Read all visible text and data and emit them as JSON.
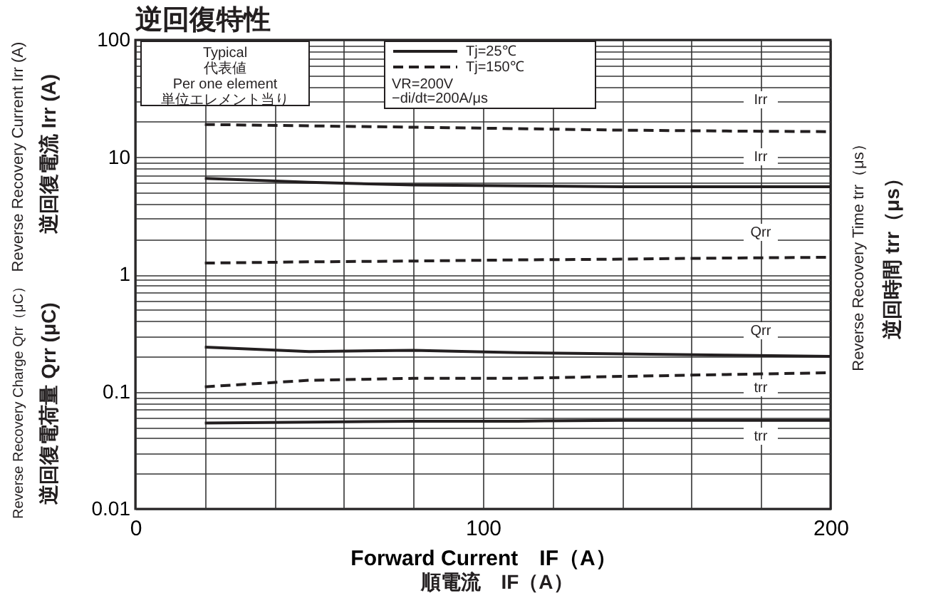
{
  "chart_data": {
    "type": "line",
    "title": "逆回復特性",
    "xlabel": "Forward Current　IF（A）",
    "ylabel": "Reverse Recovery Current Irr (A)",
    "y2label": "Reverse Recovery Time trr（μs）",
    "x": [
      20,
      50,
      80,
      110,
      140,
      170,
      200
    ],
    "series": [
      {
        "name": "Tj=25℃",
        "color": "#231f20",
        "line_style": "solid",
        "values": [
          6.6,
          6.1,
          5.8,
          5.7,
          5.6,
          5.6,
          5.6
        ]
      },
      {
        "name": "Tj=150℃",
        "color": "#231f20",
        "line_style": "dashed",
        "values": [
          19,
          18.5,
          18,
          17.5,
          17,
          16.7,
          16.5
        ]
      },
      {
        "color": "#231f20",
        "line_style": "dashed",
        "values": [
          1.25,
          1.28,
          1.3,
          1.33,
          1.35,
          1.38,
          1.4
        ]
      },
      {
        "color": "#231f20",
        "line_style": "solid",
        "values": [
          0.24,
          0.22,
          0.225,
          0.215,
          0.21,
          0.205,
          0.2
        ]
      },
      {
        "color": "#231f20",
        "line_style": "dashed",
        "values": [
          0.11,
          0.125,
          0.13,
          0.13,
          0.135,
          0.14,
          0.145
        ]
      },
      {
        "color": "#231f20",
        "line_style": "solid",
        "values": [
          0.054,
          0.055,
          0.056,
          0.056,
          0.057,
          0.057,
          0.057
        ]
      }
    ],
    "xlim": [
      0,
      200
    ],
    "xticks": [
      0,
      {
        "value": 20,
        "label": null
      },
      {
        "value": 40,
        "label": null
      },
      {
        "value": 60,
        "label": null
      },
      {
        "value": 80,
        "label": null
      },
      100,
      {
        "value": 120,
        "label": null
      },
      {
        "value": 140,
        "label": null
      },
      {
        "value": 160,
        "label": null
      },
      {
        "value": 180,
        "label": null
      },
      200
    ],
    "ylim": [
      0.01,
      100
    ],
    "log": true,
    "yticks": [
      0.01,
      {
        "value": 0.02,
        "label": null
      },
      {
        "value": 0.03,
        "label": null
      },
      {
        "value": 0.04,
        "label": null
      },
      {
        "value": 0.05,
        "label": null
      },
      {
        "value": 0.06,
        "label": null
      },
      {
        "value": 0.07,
        "label": null
      },
      {
        "value": 0.08,
        "label": null
      },
      {
        "value": 0.09,
        "label": null
      },
      0.1,
      {
        "value": 0.2,
        "label": null
      },
      {
        "value": 0.3,
        "label": null
      },
      {
        "value": 0.4,
        "label": null
      },
      {
        "value": 0.5,
        "label": null
      },
      {
        "value": 0.6,
        "label": null
      },
      {
        "value": 0.7,
        "label": null
      },
      {
        "value": 0.8,
        "label": null
      },
      {
        "value": 0.9,
        "label": null
      },
      1,
      {
        "value": 2,
        "label": null
      },
      {
        "value": 3,
        "label": null
      },
      {
        "value": 4,
        "label": null
      },
      {
        "value": 5,
        "label": null
      },
      {
        "value": 6,
        "label": null
      },
      {
        "value": 7,
        "label": null
      },
      {
        "value": 8,
        "label": null
      },
      {
        "value": 9,
        "label": null
      },
      10,
      {
        "value": 20,
        "label": null
      },
      {
        "value": 30,
        "label": null
      },
      {
        "value": 40,
        "label": null
      },
      {
        "value": 50,
        "label": null
      },
      {
        "value": 60,
        "label": null
      },
      {
        "value": 70,
        "label": null
      },
      {
        "value": 80,
        "label": null
      },
      {
        "value": 90,
        "label": null
      },
      100
    ],
    "grid": true,
    "legend": "top",
    "annotations": [
      "順電流　IF（A）",
      "逆回復電流 Irr (A)",
      "Reverse Recovery Charge Qrr（μC）",
      "逆回復電荷量 Qrr (μC)",
      "逆回時間 trr（μs）",
      "Typical\n代表値\nPer one element\n単位エレメント当り",
      "VR=200V",
      "−di/dt=200A/μs",
      "Irr",
      "Irr",
      "Qrr",
      "Qrr",
      "trr",
      "trr"
    ]
  }
}
